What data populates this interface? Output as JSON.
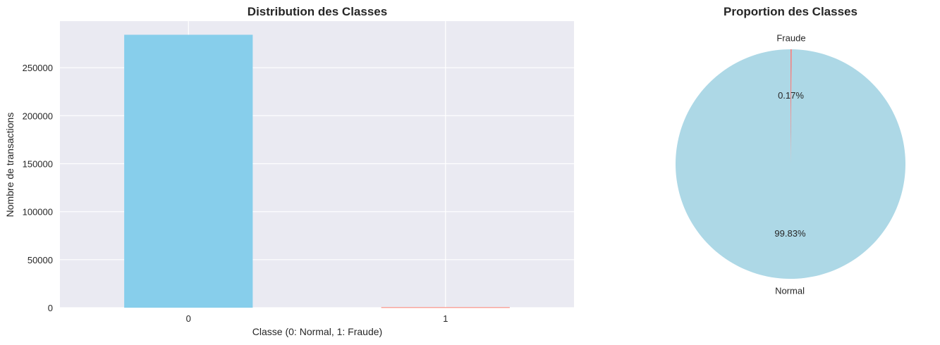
{
  "chart_data": [
    {
      "type": "bar",
      "title": "Distribution des Classes",
      "xlabel": "Classe (0: Normal, 1: Fraude)",
      "ylabel": "Nombre de transactions",
      "categories": [
        "0",
        "1"
      ],
      "values": [
        284315,
        492
      ],
      "colors": [
        "#87ceeb",
        "#fa8072"
      ],
      "ylim": [
        0,
        298536
      ],
      "yticks": [
        0,
        50000,
        100000,
        150000,
        200000,
        250000
      ],
      "ytick_labels": [
        "0",
        "50000",
        "100000",
        "150000",
        "200000",
        "250000"
      ],
      "grid": true,
      "style": {
        "axes_bg": "#eaeaf2",
        "grid_color": "#ffffff"
      }
    },
    {
      "type": "pie",
      "title": "Proportion des Classes",
      "labels": [
        "Normal",
        "Fraude"
      ],
      "values": [
        284315,
        492
      ],
      "percent_labels": [
        "99.83%",
        "0.17%"
      ],
      "colors": [
        "#add8e6",
        "#f08080"
      ],
      "start_angle_deg": 90
    }
  ]
}
